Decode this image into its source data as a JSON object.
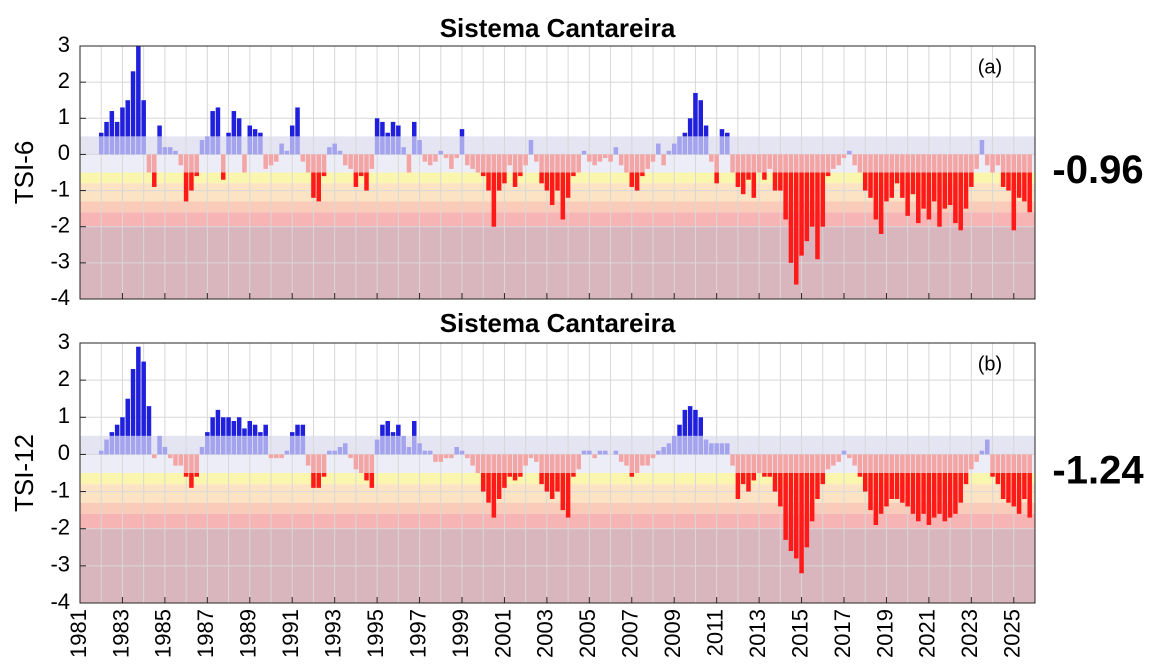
{
  "chart_data": [
    {
      "type": "bar",
      "title": "Sistema Cantareira",
      "y_label": "TSI-6",
      "panel_label": "(a)",
      "annotation": "-0.96",
      "xlim": [
        1981,
        2026
      ],
      "ylim": [
        -4,
        3
      ],
      "yticks": [
        -4,
        -3,
        -2,
        -1,
        0,
        1,
        2,
        3
      ],
      "xticks": [
        1981,
        1983,
        1985,
        1987,
        1989,
        1991,
        1993,
        1995,
        1997,
        1999,
        2001,
        2003,
        2005,
        2007,
        2009,
        2011,
        2013,
        2015,
        2017,
        2019,
        2021,
        2023,
        2025
      ],
      "grid": true,
      "bar_colors": {
        "strong_positive": "#1f1fdc",
        "positive": "#a3a3ee",
        "negative": "#f3a4a4",
        "strong_negative": "#ff1a1a"
      },
      "bands": [
        {
          "from": 0,
          "to": 0.5,
          "color": "#e4e4f3"
        },
        {
          "from": -0.5,
          "to": 0,
          "color": "#ededf7"
        },
        {
          "from": -0.8,
          "to": -0.5,
          "color": "#fbf6ae"
        },
        {
          "from": -1.3,
          "to": -0.8,
          "color": "#fbe3c3"
        },
        {
          "from": -1.6,
          "to": -1.3,
          "color": "#f9cbb8"
        },
        {
          "from": -2,
          "to": -1.6,
          "color": "#f6b4b4"
        },
        {
          "from": -4,
          "to": -2,
          "color": "#d9b5bd"
        }
      ],
      "x": [
        1982,
        1982.25,
        1982.5,
        1982.75,
        1983,
        1983.25,
        1983.5,
        1983.75,
        1984,
        1984.25,
        1984.5,
        1984.75,
        1985,
        1985.25,
        1985.5,
        1985.75,
        1986,
        1986.25,
        1986.5,
        1986.75,
        1987,
        1987.25,
        1987.5,
        1987.75,
        1988,
        1988.25,
        1988.5,
        1988.75,
        1989,
        1989.25,
        1989.5,
        1989.75,
        1990,
        1990.25,
        1990.5,
        1990.75,
        1991,
        1991.25,
        1991.5,
        1991.75,
        1992,
        1992.25,
        1992.5,
        1992.75,
        1993,
        1993.25,
        1993.5,
        1993.75,
        1994,
        1994.25,
        1994.5,
        1994.75,
        1995,
        1995.25,
        1995.5,
        1995.75,
        1996,
        1996.25,
        1996.5,
        1996.75,
        1997,
        1997.25,
        1997.5,
        1997.75,
        1998,
        1998.25,
        1998.5,
        1998.75,
        1999,
        1999.25,
        1999.5,
        1999.75,
        2000,
        2000.25,
        2000.5,
        2000.75,
        2001,
        2001.25,
        2001.5,
        2001.75,
        2002,
        2002.25,
        2002.5,
        2002.75,
        2003,
        2003.25,
        2003.5,
        2003.75,
        2004,
        2004.25,
        2004.5,
        2004.75,
        2005,
        2005.25,
        2005.5,
        2005.75,
        2006,
        2006.25,
        2006.5,
        2006.75,
        2007,
        2007.25,
        2007.5,
        2007.75,
        2008,
        2008.25,
        2008.5,
        2008.75,
        2009,
        2009.25,
        2009.5,
        2009.75,
        2010,
        2010.25,
        2010.5,
        2010.75,
        2011,
        2011.25,
        2011.5,
        2011.75,
        2012,
        2012.25,
        2012.5,
        2012.75,
        2013,
        2013.25,
        2013.5,
        2013.75,
        2014,
        2014.25,
        2014.5,
        2014.75,
        2015,
        2015.25,
        2015.5,
        2015.75,
        2016,
        2016.25,
        2016.5,
        2016.75,
        2017,
        2017.25,
        2017.5,
        2017.75,
        2018,
        2018.25,
        2018.5,
        2018.75,
        2019,
        2019.25,
        2019.5,
        2019.75,
        2020,
        2020.25,
        2020.5,
        2020.75,
        2021,
        2021.25,
        2021.5,
        2021.75,
        2022,
        2022.25,
        2022.5,
        2022.75,
        2023,
        2023.25,
        2023.5,
        2023.75,
        2024,
        2024.25,
        2024.5,
        2024.75,
        2025,
        2025.25,
        2025.5,
        2025.75
      ],
      "values": [
        0.6,
        0.9,
        1.2,
        0.9,
        1.3,
        1.5,
        2.3,
        3.0,
        1.5,
        -0.5,
        -0.9,
        0.8,
        0.2,
        0.2,
        0.1,
        -0.3,
        -1.3,
        -1.0,
        -0.6,
        0.4,
        0.5,
        1.2,
        1.3,
        -0.7,
        0.6,
        1.2,
        1.0,
        -0.5,
        0.8,
        0.7,
        0.6,
        -0.4,
        -0.3,
        -0.2,
        0.3,
        0.1,
        0.8,
        1.3,
        -0.2,
        -0.5,
        -1.2,
        -1.3,
        -0.6,
        0.2,
        0.3,
        0.1,
        -0.3,
        -0.4,
        -0.9,
        -0.6,
        -1.0,
        -0.4,
        1.0,
        0.9,
        0.6,
        0.9,
        0.8,
        0.2,
        -0.5,
        0.9,
        0.4,
        -0.2,
        -0.3,
        -0.2,
        0.1,
        -0.1,
        -0.4,
        -0.1,
        0.7,
        -0.3,
        -0.4,
        -0.5,
        -0.6,
        -1.0,
        -2.0,
        -1.0,
        -0.8,
        -0.3,
        -0.9,
        -0.6,
        -0.3,
        0.4,
        -0.2,
        -0.8,
        -1.0,
        -1.4,
        -1.0,
        -1.8,
        -1.2,
        -0.6,
        -0.5,
        0.1,
        -0.2,
        -0.3,
        -0.2,
        -0.1,
        -0.2,
        0.2,
        -0.3,
        -0.5,
        -0.9,
        -1.0,
        -0.6,
        -0.4,
        -0.2,
        0.3,
        -0.3,
        0.1,
        0.3,
        0.5,
        0.6,
        1.0,
        1.7,
        1.5,
        0.8,
        -0.2,
        -0.8,
        0.7,
        0.6,
        -0.5,
        -0.9,
        -1.1,
        -0.7,
        -1.2,
        -0.5,
        -0.7,
        -0.4,
        -1.0,
        -1.0,
        -1.8,
        -3.0,
        -3.6,
        -2.8,
        -2.4,
        -2.0,
        -2.9,
        -2.0,
        -0.6,
        -0.4,
        -0.3,
        -0.1,
        0.1,
        -0.3,
        -0.5,
        -1.0,
        -1.2,
        -1.8,
        -2.2,
        -1.3,
        -1.2,
        -0.8,
        -1.2,
        -1.7,
        -1.1,
        -1.9,
        -1.5,
        -1.8,
        -1.3,
        -2.0,
        -1.5,
        -1.4,
        -1.9,
        -2.1,
        -1.5,
        -0.9,
        -0.4,
        0.4,
        -0.3,
        -0.5,
        -0.3,
        -0.9,
        -1.0,
        -2.1,
        -1.2,
        -1.3,
        -1.6
      ]
    },
    {
      "type": "bar",
      "title": "Sistema Cantareira",
      "y_label": "TSI-12",
      "panel_label": "(b)",
      "annotation": "-1.24",
      "xlim": [
        1981,
        2026
      ],
      "ylim": [
        -4,
        3
      ],
      "yticks": [
        -4,
        -3,
        -2,
        -1,
        0,
        1,
        2,
        3
      ],
      "xticks": [
        1981,
        1983,
        1985,
        1987,
        1989,
        1991,
        1993,
        1995,
        1997,
        1999,
        2001,
        2003,
        2005,
        2007,
        2009,
        2011,
        2013,
        2015,
        2017,
        2019,
        2021,
        2023,
        2025
      ],
      "grid": true,
      "bar_colors": {
        "strong_positive": "#1f1fdc",
        "positive": "#a3a3ee",
        "negative": "#f3a4a4",
        "strong_negative": "#ff1a1a"
      },
      "bands": [
        {
          "from": 0,
          "to": 0.5,
          "color": "#e4e4f3"
        },
        {
          "from": -0.5,
          "to": 0,
          "color": "#ededf7"
        },
        {
          "from": -0.8,
          "to": -0.5,
          "color": "#fbf6ae"
        },
        {
          "from": -1.3,
          "to": -0.8,
          "color": "#fbe3c3"
        },
        {
          "from": -1.6,
          "to": -1.3,
          "color": "#f9cbb8"
        },
        {
          "from": -2,
          "to": -1.6,
          "color": "#f6b4b4"
        },
        {
          "from": -4,
          "to": -2,
          "color": "#d9b5bd"
        }
      ],
      "x": [
        1982,
        1982.25,
        1982.5,
        1982.75,
        1983,
        1983.25,
        1983.5,
        1983.75,
        1984,
        1984.25,
        1984.5,
        1984.75,
        1985,
        1985.25,
        1985.5,
        1985.75,
        1986,
        1986.25,
        1986.5,
        1986.75,
        1987,
        1987.25,
        1987.5,
        1987.75,
        1988,
        1988.25,
        1988.5,
        1988.75,
        1989,
        1989.25,
        1989.5,
        1989.75,
        1990,
        1990.25,
        1990.5,
        1990.75,
        1991,
        1991.25,
        1991.5,
        1991.75,
        1992,
        1992.25,
        1992.5,
        1992.75,
        1993,
        1993.25,
        1993.5,
        1993.75,
        1994,
        1994.25,
        1994.5,
        1994.75,
        1995,
        1995.25,
        1995.5,
        1995.75,
        1996,
        1996.25,
        1996.5,
        1996.75,
        1997,
        1997.25,
        1997.5,
        1997.75,
        1998,
        1998.25,
        1998.5,
        1998.75,
        1999,
        1999.25,
        1999.5,
        1999.75,
        2000,
        2000.25,
        2000.5,
        2000.75,
        2001,
        2001.25,
        2001.5,
        2001.75,
        2002,
        2002.25,
        2002.5,
        2002.75,
        2003,
        2003.25,
        2003.5,
        2003.75,
        2004,
        2004.25,
        2004.5,
        2004.75,
        2005,
        2005.25,
        2005.5,
        2005.75,
        2006,
        2006.25,
        2006.5,
        2006.75,
        2007,
        2007.25,
        2007.5,
        2007.75,
        2008,
        2008.25,
        2008.5,
        2008.75,
        2009,
        2009.25,
        2009.5,
        2009.75,
        2010,
        2010.25,
        2010.5,
        2010.75,
        2011,
        2011.25,
        2011.5,
        2011.75,
        2012,
        2012.25,
        2012.5,
        2012.75,
        2013,
        2013.25,
        2013.5,
        2013.75,
        2014,
        2014.25,
        2014.5,
        2014.75,
        2015,
        2015.25,
        2015.5,
        2015.75,
        2016,
        2016.25,
        2016.5,
        2016.75,
        2017,
        2017.25,
        2017.5,
        2017.75,
        2018,
        2018.25,
        2018.5,
        2018.75,
        2019,
        2019.25,
        2019.5,
        2019.75,
        2020,
        2020.25,
        2020.5,
        2020.75,
        2021,
        2021.25,
        2021.5,
        2021.75,
        2022,
        2022.25,
        2022.5,
        2022.75,
        2023,
        2023.25,
        2023.5,
        2023.75,
        2024,
        2024.25,
        2024.5,
        2024.75,
        2025,
        2025.25,
        2025.5,
        2025.75
      ],
      "values": [
        0.1,
        0.4,
        0.6,
        0.8,
        1.0,
        1.5,
        2.3,
        2.9,
        2.5,
        1.3,
        -0.1,
        0.5,
        0.2,
        -0.1,
        -0.3,
        -0.3,
        -0.6,
        -0.9,
        -0.6,
        0.2,
        0.6,
        1.0,
        1.2,
        1.0,
        1.0,
        0.9,
        1.0,
        0.7,
        0.9,
        0.8,
        0.6,
        0.8,
        -0.1,
        -0.1,
        -0.1,
        0.1,
        0.6,
        0.8,
        0.8,
        -0.3,
        -0.9,
        -0.9,
        -0.6,
        0.1,
        0.1,
        0.2,
        0.3,
        -0.1,
        -0.4,
        -0.5,
        -0.7,
        -0.9,
        0.4,
        0.8,
        0.9,
        0.6,
        0.8,
        0.5,
        0.2,
        0.9,
        0.3,
        0.1,
        0.1,
        -0.2,
        -0.2,
        -0.1,
        -0.1,
        0.2,
        0.1,
        -0.1,
        -0.3,
        -0.5,
        -1.0,
        -1.3,
        -1.7,
        -1.2,
        -0.9,
        -0.6,
        -0.7,
        -0.6,
        -0.3,
        -0.1,
        -0.2,
        -0.8,
        -1.0,
        -1.2,
        -1.0,
        -1.5,
        -1.7,
        -0.6,
        -0.4,
        0.1,
        0.1,
        -0.1,
        0.1,
        0.1,
        0.0,
        0.1,
        -0.2,
        -0.3,
        -0.6,
        -0.5,
        -0.3,
        -0.3,
        -0.1,
        0.1,
        0.2,
        0.3,
        0.5,
        0.8,
        1.2,
        1.3,
        1.2,
        1.0,
        0.4,
        0.3,
        0.3,
        0.3,
        0.3,
        -0.3,
        -1.2,
        -0.8,
        -1.0,
        -0.7,
        -0.5,
        -0.6,
        -0.6,
        -1.0,
        -1.4,
        -2.3,
        -2.6,
        -2.8,
        -3.2,
        -2.5,
        -1.8,
        -1.2,
        -0.8,
        -0.4,
        -0.3,
        -0.2,
        0.1,
        -0.1,
        -0.3,
        -0.6,
        -1.0,
        -1.5,
        -1.9,
        -1.6,
        -1.4,
        -1.2,
        -1.2,
        -1.3,
        -1.4,
        -1.6,
        -1.8,
        -1.6,
        -1.9,
        -1.7,
        -1.6,
        -1.8,
        -1.7,
        -1.6,
        -1.3,
        -0.8,
        -0.4,
        -0.2,
        0.1,
        0.4,
        -0.6,
        -0.8,
        -1.2,
        -1.3,
        -1.4,
        -1.6,
        -1.2,
        -1.7
      ]
    }
  ]
}
